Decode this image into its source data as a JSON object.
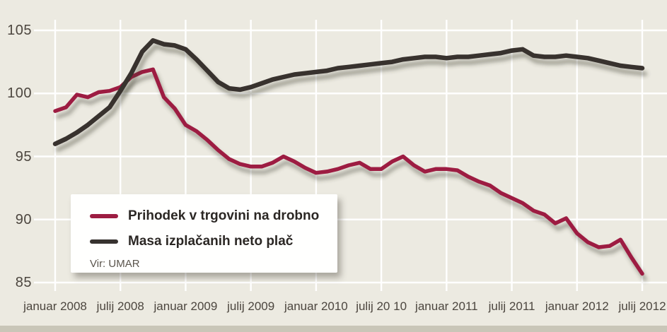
{
  "colors": {
    "background": "#eceae1",
    "gridline": "#ffffff",
    "retail_line": "#9d1d42",
    "wages_line": "#37322f",
    "tick_text": "#4c463f",
    "bottom_bar": "#c9c6b8"
  },
  "chart_data": {
    "type": "line",
    "title": "",
    "grid": true,
    "legend_position": "box bottom-left",
    "source": "Vir: UMAR",
    "x_axis": {
      "frequency": "monthly",
      "start": "januar 2008",
      "end": "julij 2012",
      "tick_labels": [
        "januar 2008",
        "julij 2008",
        "januar 2009",
        "julij 2009",
        "januar 2010",
        "julij 20 10",
        "januar 2011",
        "julij 2011",
        "januar 2012",
        "julij 2012"
      ]
    },
    "y_axis": {
      "ticks": [
        105,
        100,
        95,
        90,
        85
      ],
      "range": [
        85,
        105
      ]
    },
    "series": [
      {
        "name": "Prihodek v trgovini na drobno",
        "color": "#9d1d42",
        "values": [
          98.6,
          98.9,
          99.9,
          99.7,
          100.1,
          100.2,
          100.5,
          101.3,
          101.7,
          101.9,
          99.7,
          98.8,
          97.5,
          97.0,
          96.3,
          95.5,
          94.8,
          94.4,
          94.2,
          94.2,
          94.5,
          95.0,
          94.6,
          94.1,
          93.7,
          93.8,
          94.0,
          94.3,
          94.5,
          94.0,
          94.0,
          94.6,
          95.0,
          94.3,
          93.8,
          94.0,
          94.0,
          93.9,
          93.4,
          93.0,
          92.7,
          92.1,
          91.7,
          91.3,
          90.7,
          90.4,
          89.7,
          90.1,
          88.9,
          88.2,
          87.8,
          87.9,
          88.4,
          87.0,
          85.7
        ]
      },
      {
        "name": "Masa izplačanih neto plač",
        "color": "#37322f",
        "values": [
          96.0,
          96.4,
          96.9,
          97.5,
          98.2,
          98.9,
          100.2,
          101.6,
          103.3,
          104.2,
          103.9,
          103.8,
          103.5,
          102.7,
          101.8,
          100.9,
          100.4,
          100.3,
          100.5,
          100.8,
          101.1,
          101.3,
          101.5,
          101.6,
          101.7,
          101.8,
          102.0,
          102.1,
          102.2,
          102.3,
          102.4,
          102.5,
          102.7,
          102.8,
          102.9,
          102.9,
          102.8,
          102.9,
          102.9,
          103.0,
          103.1,
          103.2,
          103.4,
          103.5,
          103.0,
          102.9,
          102.9,
          103.0,
          102.9,
          102.8,
          102.6,
          102.4,
          102.2,
          102.1,
          102.0
        ]
      }
    ]
  }
}
